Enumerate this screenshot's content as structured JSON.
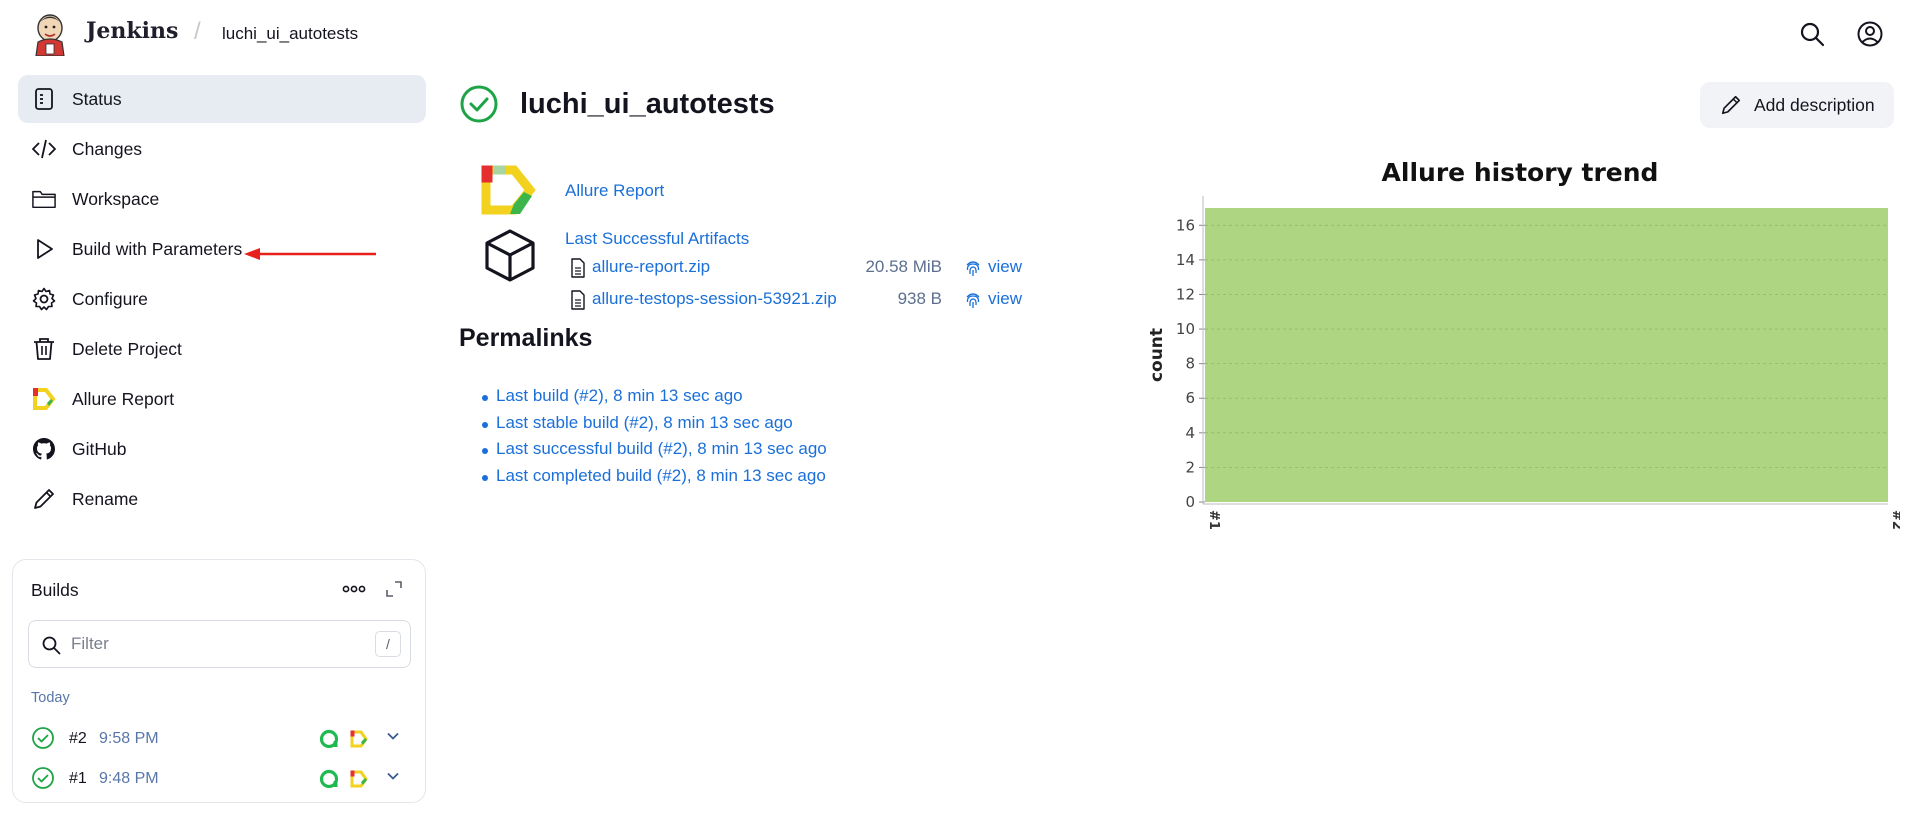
{
  "header": {
    "brand": "Jenkins",
    "crumb_separator": "/",
    "crumb": "luchi_ui_autotests",
    "icons": [
      "search-icon",
      "user-icon"
    ]
  },
  "sidebar": {
    "items": [
      {
        "label": "Status",
        "icon": "status-doc-icon",
        "active": true
      },
      {
        "label": "Changes",
        "icon": "code-icon"
      },
      {
        "label": "Workspace",
        "icon": "folder-icon"
      },
      {
        "label": "Build with Parameters",
        "icon": "play-icon"
      },
      {
        "label": "Configure",
        "icon": "gear-icon"
      },
      {
        "label": "Delete Project",
        "icon": "trash-icon"
      },
      {
        "label": "Allure Report",
        "icon": "allure-icon"
      },
      {
        "label": "GitHub",
        "icon": "github-icon"
      },
      {
        "label": "Rename",
        "icon": "pencil-icon"
      }
    ]
  },
  "builds": {
    "title": "Builds",
    "filter_placeholder": "Filter",
    "filter_shortcut": "/",
    "group": "Today",
    "rows": [
      {
        "number": "#2",
        "time": "9:58 PM"
      },
      {
        "number": "#1",
        "time": "9:48 PM"
      }
    ]
  },
  "main": {
    "title": "luchi_ui_autotests",
    "add_description": "Add description",
    "allure_report": "Allure Report",
    "artifacts_title": "Last Successful Artifacts",
    "artifacts": [
      {
        "name": "allure-report.zip",
        "size": "20.58 MiB",
        "view": "view"
      },
      {
        "name": "allure-testops-session-53921.zip",
        "size": "938 B",
        "view": "view"
      }
    ],
    "permalinks_title": "Permalinks",
    "permalinks": [
      "Last build (#2), 8 min 13 sec ago",
      "Last stable build (#2), 8 min 13 sec ago",
      "Last successful build (#2), 8 min 13 sec ago",
      "Last completed build (#2), 8 min 13 sec ago"
    ]
  },
  "chart_data": {
    "type": "area",
    "title": "Allure history trend",
    "xlabel": "",
    "ylabel": "count",
    "categories": [
      "#1",
      "#2"
    ],
    "series": [
      {
        "name": "",
        "values": [
          17,
          17
        ],
        "color": "#aed581"
      }
    ],
    "ylim": [
      0,
      17
    ],
    "yticks": [
      0,
      2,
      4,
      6,
      8,
      10,
      12,
      14,
      16
    ],
    "grid": true
  },
  "colors": {
    "accent": "#1a6fd9",
    "success": "#1ea446",
    "area_fill": "#aed581",
    "active_bg": "#e7ebf2"
  }
}
